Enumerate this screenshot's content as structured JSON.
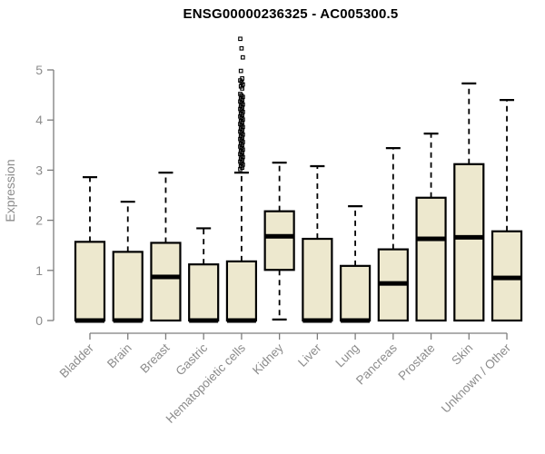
{
  "chart_data": {
    "type": "boxplot",
    "title": "ENSG00000236325 - AC005300.5",
    "ylabel": "Expression",
    "xlabel": "",
    "ylim": [
      0,
      5
    ],
    "yticks": [
      0,
      1,
      2,
      3,
      4,
      5
    ],
    "grid": false,
    "legend": "none",
    "categories": [
      "Bladder",
      "Brain",
      "Breast",
      "Gastric",
      "Hematopoietic cells",
      "Kidney",
      "Liver",
      "Lung",
      "Pancreas",
      "Prostate",
      "Skin",
      "Unknown / Other"
    ],
    "series": [
      {
        "label": "Bladder",
        "q1": 0,
        "median": 0,
        "q3": 1.57,
        "whisker_low": 0,
        "whisker_high": 2.86,
        "outliers": []
      },
      {
        "label": "Brain",
        "q1": 0,
        "median": 0,
        "q3": 1.37,
        "whisker_low": 0,
        "whisker_high": 2.37,
        "outliers": []
      },
      {
        "label": "Breast",
        "q1": 0,
        "median": 0.87,
        "q3": 1.55,
        "whisker_low": 0,
        "whisker_high": 2.95,
        "outliers": []
      },
      {
        "label": "Gastric",
        "q1": 0,
        "median": 0,
        "q3": 1.12,
        "whisker_low": 0,
        "whisker_high": 1.84,
        "outliers": []
      },
      {
        "label": "Hematopoietic cells",
        "q1": 0,
        "median": 0,
        "q3": 1.18,
        "whisker_low": 0,
        "whisker_high": 2.95,
        "outliers": [
          5.62,
          5.43,
          5.25,
          4.98,
          4.83,
          4.79,
          4.75,
          4.71,
          4.67,
          4.63,
          4.52,
          4.49,
          4.46,
          4.43,
          4.4,
          4.37,
          4.34,
          4.31,
          4.28,
          4.25,
          4.22,
          4.19,
          4.16,
          4.13,
          4.1,
          4.07,
          4.04,
          4.01,
          3.98,
          3.95,
          3.92,
          3.89,
          3.86,
          3.83,
          3.8,
          3.77,
          3.74,
          3.71,
          3.68,
          3.65,
          3.62,
          3.59,
          3.56,
          3.53,
          3.5,
          3.47,
          3.44,
          3.41,
          3.38,
          3.35,
          3.32,
          3.29,
          3.26,
          3.23,
          3.2,
          3.17,
          3.14,
          3.11,
          3.08,
          3.05,
          3.02
        ]
      },
      {
        "label": "Kidney",
        "q1": 1.01,
        "median": 1.68,
        "q3": 2.18,
        "whisker_low": 0.02,
        "whisker_high": 3.15,
        "outliers": []
      },
      {
        "label": "Liver",
        "q1": 0,
        "median": 0,
        "q3": 1.63,
        "whisker_low": 0,
        "whisker_high": 3.08,
        "outliers": []
      },
      {
        "label": "Lung",
        "q1": 0,
        "median": 0,
        "q3": 1.09,
        "whisker_low": 0,
        "whisker_high": 2.28,
        "outliers": []
      },
      {
        "label": "Pancreas",
        "q1": 0,
        "median": 0.74,
        "q3": 1.42,
        "whisker_low": 0,
        "whisker_high": 3.44,
        "outliers": []
      },
      {
        "label": "Prostate",
        "q1": 0,
        "median": 1.63,
        "q3": 2.45,
        "whisker_low": 0,
        "whisker_high": 3.73,
        "outliers": []
      },
      {
        "label": "Skin",
        "q1": 0,
        "median": 1.66,
        "q3": 3.12,
        "whisker_low": 0,
        "whisker_high": 4.73,
        "outliers": []
      },
      {
        "label": "Unknown / Other",
        "q1": 0,
        "median": 0.85,
        "q3": 1.78,
        "whisker_low": 0,
        "whisker_high": 4.4,
        "outliers": []
      }
    ],
    "colors": {
      "box_fill": "#EDE8CE",
      "box_border": "#000000",
      "median": "#000000",
      "whisker": "#000000",
      "axis_line": "#7d7d7d",
      "axis_text": "#8c8c8c",
      "title_text": "#000000",
      "background": "#ffffff"
    }
  }
}
